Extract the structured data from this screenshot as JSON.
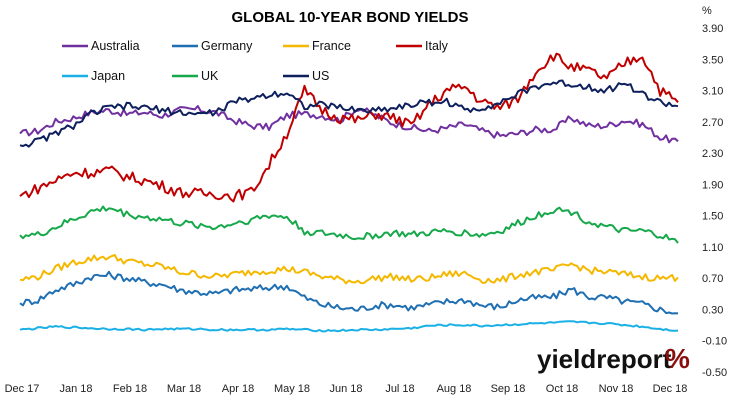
{
  "chart_data": {
    "type": "line",
    "title": "GLOBAL 10-YEAR BOND YIELDS",
    "y_unit": "%",
    "ylim": [
      -0.5,
      3.9
    ],
    "yticks": [
      "3.90",
      "3.50",
      "3.10",
      "2.70",
      "2.30",
      "1.90",
      "1.50",
      "1.10",
      "0.70",
      "0.30",
      "-0.10",
      "-0.50"
    ],
    "x_labels": [
      "Dec 17",
      "Jan 18",
      "Feb 18",
      "Mar 18",
      "Apr 18",
      "May 18",
      "Jun 18",
      "Jul 18",
      "Aug 18",
      "Sep 18",
      "Oct 18",
      "Nov 18",
      "Dec 18"
    ],
    "grid": false,
    "legend_position": "top-left",
    "series": [
      {
        "name": "Australia",
        "color": "#7030a0",
        "values": [
          2.55,
          2.58,
          2.7,
          2.75,
          2.82,
          2.85,
          2.8,
          2.82,
          2.78,
          2.85,
          2.86,
          2.82,
          2.72,
          2.65,
          2.63,
          2.78,
          2.8,
          2.78,
          2.72,
          2.88,
          2.78,
          2.68,
          2.63,
          2.58,
          2.62,
          2.67,
          2.58,
          2.52,
          2.55,
          2.6,
          2.6,
          2.75,
          2.65,
          2.65,
          2.72,
          2.67,
          2.5,
          2.45
        ]
      },
      {
        "name": "Germany",
        "color": "#1f6fb2",
        "values": [
          0.38,
          0.42,
          0.55,
          0.62,
          0.72,
          0.74,
          0.7,
          0.65,
          0.62,
          0.55,
          0.52,
          0.5,
          0.55,
          0.56,
          0.58,
          0.6,
          0.45,
          0.36,
          0.32,
          0.3,
          0.35,
          0.36,
          0.32,
          0.36,
          0.4,
          0.42,
          0.35,
          0.33,
          0.42,
          0.45,
          0.46,
          0.56,
          0.46,
          0.45,
          0.4,
          0.37,
          0.3,
          0.25
        ]
      },
      {
        "name": "France",
        "color": "#f5b800",
        "values": [
          0.68,
          0.72,
          0.82,
          0.9,
          0.95,
          0.98,
          0.92,
          0.88,
          0.85,
          0.78,
          0.75,
          0.72,
          0.75,
          0.78,
          0.8,
          0.82,
          0.78,
          0.72,
          0.68,
          0.66,
          0.7,
          0.72,
          0.68,
          0.7,
          0.75,
          0.76,
          0.68,
          0.67,
          0.74,
          0.78,
          0.8,
          0.88,
          0.8,
          0.78,
          0.75,
          0.72,
          0.7,
          0.71
        ]
      },
      {
        "name": "Italy",
        "color": "#c00000",
        "values": [
          1.75,
          1.85,
          1.95,
          2.05,
          2.05,
          2.08,
          2.0,
          1.95,
          1.88,
          1.8,
          1.78,
          1.78,
          1.75,
          1.8,
          2.15,
          2.55,
          3.1,
          2.85,
          2.75,
          2.72,
          2.8,
          2.75,
          2.65,
          2.92,
          3.1,
          3.15,
          2.95,
          2.88,
          3.0,
          3.35,
          3.55,
          3.4,
          3.35,
          3.25,
          3.45,
          3.55,
          3.1,
          2.95
        ]
      },
      {
        "name": "Japan",
        "color": "#1ab0e6",
        "values": [
          0.04,
          0.06,
          0.08,
          0.07,
          0.06,
          0.05,
          0.05,
          0.04,
          0.05,
          0.05,
          0.05,
          0.04,
          0.04,
          0.04,
          0.04,
          0.05,
          0.04,
          0.03,
          0.03,
          0.04,
          0.04,
          0.05,
          0.06,
          0.09,
          0.1,
          0.1,
          0.09,
          0.1,
          0.11,
          0.12,
          0.13,
          0.14,
          0.13,
          0.12,
          0.1,
          0.08,
          0.05,
          0.03
        ]
      },
      {
        "name": "UK",
        "color": "#16a84a",
        "values": [
          1.25,
          1.25,
          1.35,
          1.45,
          1.55,
          1.6,
          1.52,
          1.48,
          1.45,
          1.4,
          1.38,
          1.35,
          1.4,
          1.45,
          1.5,
          1.48,
          1.3,
          1.27,
          1.25,
          1.22,
          1.25,
          1.28,
          1.25,
          1.28,
          1.3,
          1.28,
          1.25,
          1.3,
          1.4,
          1.5,
          1.58,
          1.55,
          1.42,
          1.35,
          1.3,
          1.3,
          1.25,
          1.15
        ]
      },
      {
        "name": "US",
        "color": "#0d1f5c",
        "values": [
          2.4,
          2.45,
          2.55,
          2.65,
          2.8,
          2.88,
          2.9,
          2.88,
          2.85,
          2.82,
          2.8,
          2.82,
          2.95,
          3.0,
          3.05,
          3.08,
          2.9,
          2.92,
          2.88,
          2.85,
          2.85,
          2.88,
          2.92,
          2.95,
          2.96,
          2.85,
          2.88,
          2.95,
          3.05,
          3.15,
          3.2,
          3.18,
          3.15,
          3.1,
          3.2,
          3.05,
          2.95,
          2.9
        ]
      }
    ]
  },
  "logo": {
    "text": "yieldreport",
    "symbol": "%"
  }
}
